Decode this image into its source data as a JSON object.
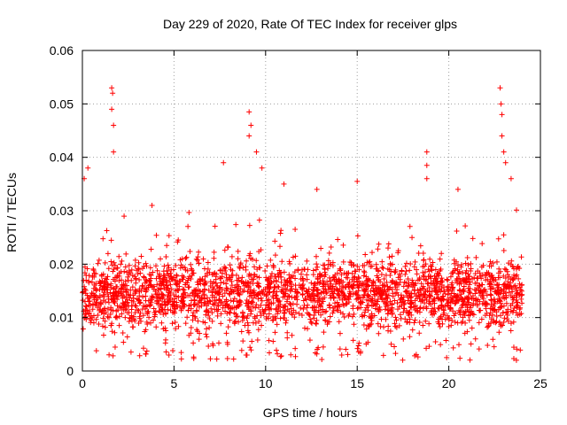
{
  "chart_data": {
    "type": "scatter",
    "title": "Day 229 of 2020, Rate Of TEC Index for receiver glps",
    "xlabel": "GPS time / hours",
    "ylabel": "ROTI / TECUs",
    "xlim": [
      0,
      25
    ],
    "ylim": [
      0,
      0.06
    ],
    "xticks": [
      0,
      5,
      10,
      15,
      20,
      25
    ],
    "yticks": [
      0,
      0.01,
      0.02,
      0.03,
      0.04,
      0.05,
      0.06
    ],
    "xtick_labels": [
      "0",
      "5",
      "10",
      "15",
      "20",
      "25"
    ],
    "ytick_labels": [
      "0",
      "0.01",
      "0.02",
      "0.03",
      "0.04",
      "0.05",
      "0.06"
    ],
    "grid": true,
    "marker": "+",
    "color": "#ff0000",
    "data_range_x": [
      0,
      24
    ],
    "typical_band": [
      0.005,
      0.02
    ],
    "series": [
      {
        "name": "ROTI",
        "description": "Dense cloud of points from 0 to 24 h, mostly 0.005–0.02 TECU/s with spikes",
        "spikes": [
          {
            "x": 0.1,
            "y": 0.036
          },
          {
            "x": 0.3,
            "y": 0.038
          },
          {
            "x": 1.6,
            "y": 0.053
          },
          {
            "x": 1.65,
            "y": 0.052
          },
          {
            "x": 1.6,
            "y": 0.049
          },
          {
            "x": 1.7,
            "y": 0.046
          },
          {
            "x": 1.7,
            "y": 0.041
          },
          {
            "x": 3.8,
            "y": 0.031
          },
          {
            "x": 7.7,
            "y": 0.039
          },
          {
            "x": 9.1,
            "y": 0.0485
          },
          {
            "x": 9.2,
            "y": 0.046
          },
          {
            "x": 9.1,
            "y": 0.044
          },
          {
            "x": 9.5,
            "y": 0.041
          },
          {
            "x": 9.8,
            "y": 0.038
          },
          {
            "x": 11.0,
            "y": 0.035
          },
          {
            "x": 12.8,
            "y": 0.034
          },
          {
            "x": 15.0,
            "y": 0.0355
          },
          {
            "x": 18.8,
            "y": 0.041
          },
          {
            "x": 18.8,
            "y": 0.0385
          },
          {
            "x": 18.8,
            "y": 0.036
          },
          {
            "x": 20.5,
            "y": 0.034
          },
          {
            "x": 22.8,
            "y": 0.053
          },
          {
            "x": 22.85,
            "y": 0.05
          },
          {
            "x": 22.9,
            "y": 0.048
          },
          {
            "x": 22.9,
            "y": 0.044
          },
          {
            "x": 23.0,
            "y": 0.041
          },
          {
            "x": 23.1,
            "y": 0.039
          },
          {
            "x": 23.4,
            "y": 0.036
          }
        ]
      }
    ]
  }
}
